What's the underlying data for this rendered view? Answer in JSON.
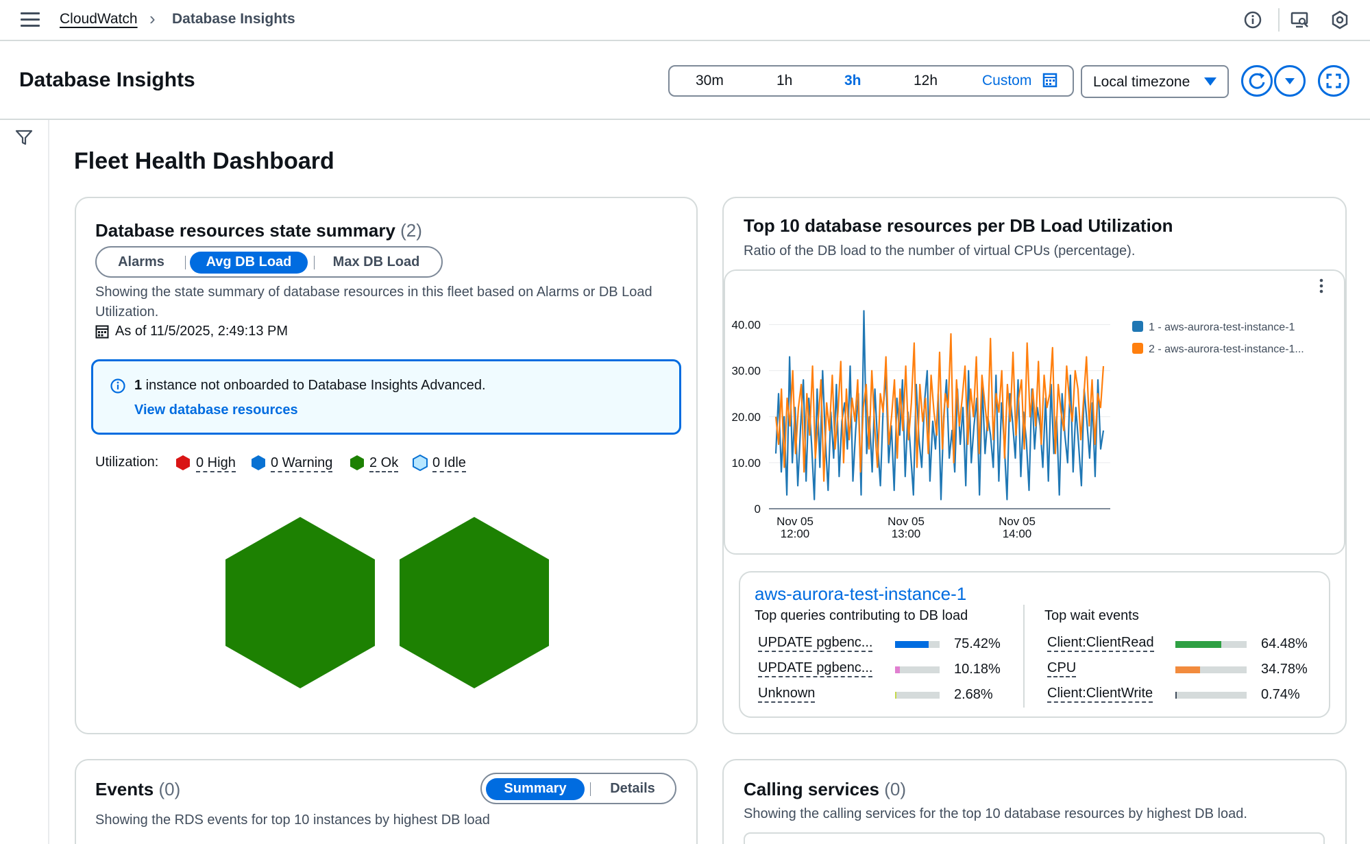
{
  "nav": {
    "breadcrumb_root": "CloudWatch",
    "breadcrumb_current": "Database Insights"
  },
  "header": {
    "title": "Database Insights",
    "ranges": [
      "30m",
      "1h",
      "3h",
      "12h"
    ],
    "range_selected": "3h",
    "custom_label": "Custom",
    "timezone": "Local timezone"
  },
  "dashboard": {
    "title": "Fleet Health Dashboard"
  },
  "state_summary": {
    "title": "Database resources state summary",
    "count": "(2)",
    "tabs": [
      "Alarms",
      "Avg DB Load",
      "Max DB Load"
    ],
    "selected_tab": "Avg DB Load",
    "description": "Showing the state summary of database resources in this fleet based on Alarms or DB Load Utilization.",
    "as_of": "As of 11/5/2025, 2:49:13 PM",
    "info_count": "1",
    "info_text": " instance not onboarded to Database Insights Advanced.",
    "info_link": "View database resources",
    "utilization_label": "Utilization:",
    "legend": [
      {
        "label": "0 High",
        "color": "#d91515"
      },
      {
        "label": "0 Warning",
        "color": "#0972d3"
      },
      {
        "label": "2 Ok",
        "color": "#1d8102"
      },
      {
        "label": "0 Idle",
        "color": "#b8e7ff"
      }
    ],
    "hexes": [
      {
        "state": "Ok",
        "color": "#1d8102"
      },
      {
        "state": "Ok",
        "color": "#1d8102"
      }
    ]
  },
  "top10": {
    "title": "Top 10 database resources per DB Load Utilization",
    "subtitle": "Ratio of the DB load to the number of virtual CPUs (percentage).",
    "instance_title": "aws-aurora-test-instance-1",
    "queries_heading": "Top queries contributing to DB load",
    "queries": [
      {
        "label": "UPDATE pgbenc...",
        "pct": "75.42%",
        "value": 0.7542,
        "color": "#006ce0"
      },
      {
        "label": "UPDATE pgbenc...",
        "pct": "10.18%",
        "value": 0.1018,
        "color": "#e07fd0"
      },
      {
        "label": "Unknown",
        "pct": "2.68%",
        "value": 0.0268,
        "color": "#c5d94a"
      }
    ],
    "waits_heading": "Top wait events",
    "waits": [
      {
        "label": "Client:ClientRead",
        "pct": "64.48%",
        "value": 0.6448,
        "color": "#2ea043"
      },
      {
        "label": "CPU",
        "pct": "34.78%",
        "value": 0.3478,
        "color": "#f28b3d"
      },
      {
        "label": "Client:ClientWrite",
        "pct": "0.74%",
        "value": 0.0074,
        "color": "#414d5c"
      }
    ]
  },
  "chart_data": {
    "type": "line",
    "title": "",
    "xlabel": "",
    "ylabel": "",
    "ylim": [
      0,
      45
    ],
    "yticks": [
      "40.00",
      "30.00",
      "20.00",
      "10.00",
      "0"
    ],
    "xticks": [
      [
        "Nov 05",
        "12:00"
      ],
      [
        "Nov 05",
        "13:00"
      ],
      [
        "Nov 05",
        "14:00"
      ]
    ],
    "legend_position": "top-right",
    "series": [
      {
        "name": "1 - aws-aurora-test-instance-1",
        "color": "#1f77b4",
        "values": [
          12,
          25,
          8,
          20,
          3,
          33,
          10,
          22,
          5,
          18,
          28,
          6,
          24,
          14,
          2,
          26,
          9,
          30,
          15,
          4,
          21,
          11,
          27,
          7,
          19,
          23,
          13,
          31,
          6,
          17,
          25,
          3,
          43,
          12,
          20,
          8,
          26,
          14,
          5,
          22,
          29,
          10,
          18,
          4,
          24,
          16,
          28,
          7,
          21,
          12,
          3,
          27,
          15,
          9,
          23,
          30,
          6,
          19,
          13,
          25,
          2,
          20,
          28,
          11,
          17,
          8,
          26,
          14,
          22,
          5,
          30,
          10,
          18,
          24,
          3,
          27,
          12,
          20,
          16,
          9,
          29,
          6,
          23,
          14,
          2,
          25,
          19,
          11,
          28,
          7,
          21,
          15,
          4,
          26,
          13,
          22,
          18,
          9,
          24,
          6,
          27,
          12,
          20,
          3,
          25,
          16,
          10,
          29,
          8,
          22,
          14,
          5,
          26,
          19,
          11,
          23,
          7,
          28,
          13,
          17
        ]
      },
      {
        "name": "2 - aws-aurora-test-instance-1...",
        "color": "#ff7f0e",
        "values": [
          20,
          14,
          26,
          9,
          24,
          18,
          30,
          12,
          22,
          27,
          8,
          25,
          16,
          31,
          11,
          19,
          28,
          6,
          23,
          17,
          29,
          13,
          21,
          32,
          10,
          26,
          15,
          24,
          19,
          28,
          8,
          22,
          27,
          13,
          30,
          18,
          9,
          25,
          21,
          33,
          14,
          20,
          28,
          11,
          26,
          17,
          31,
          15,
          23,
          36,
          9,
          27,
          19,
          24,
          12,
          29,
          21,
          16,
          34,
          13,
          25,
          22,
          38,
          10,
          28,
          18,
          24,
          31,
          14,
          26,
          20,
          33,
          12,
          29,
          23,
          17,
          37,
          15,
          25,
          21,
          30,
          11,
          27,
          19,
          34,
          16,
          24,
          28,
          13,
          36,
          20,
          26,
          18,
          32,
          14,
          29,
          22,
          25,
          35,
          12,
          27,
          21,
          17,
          31,
          23,
          19,
          30,
          26,
          15,
          24,
          33,
          18,
          28,
          14,
          25,
          22,
          31
        ]
      }
    ]
  },
  "events": {
    "title": "Events",
    "count": "(0)",
    "tabs": [
      "Summary",
      "Details"
    ],
    "selected_tab": "Summary",
    "description": "Showing the RDS events for top 10 instances by highest DB load"
  },
  "calling": {
    "title": "Calling services",
    "count": "(0)",
    "description": "Showing the calling services for the top 10 database resources by highest DB load."
  }
}
